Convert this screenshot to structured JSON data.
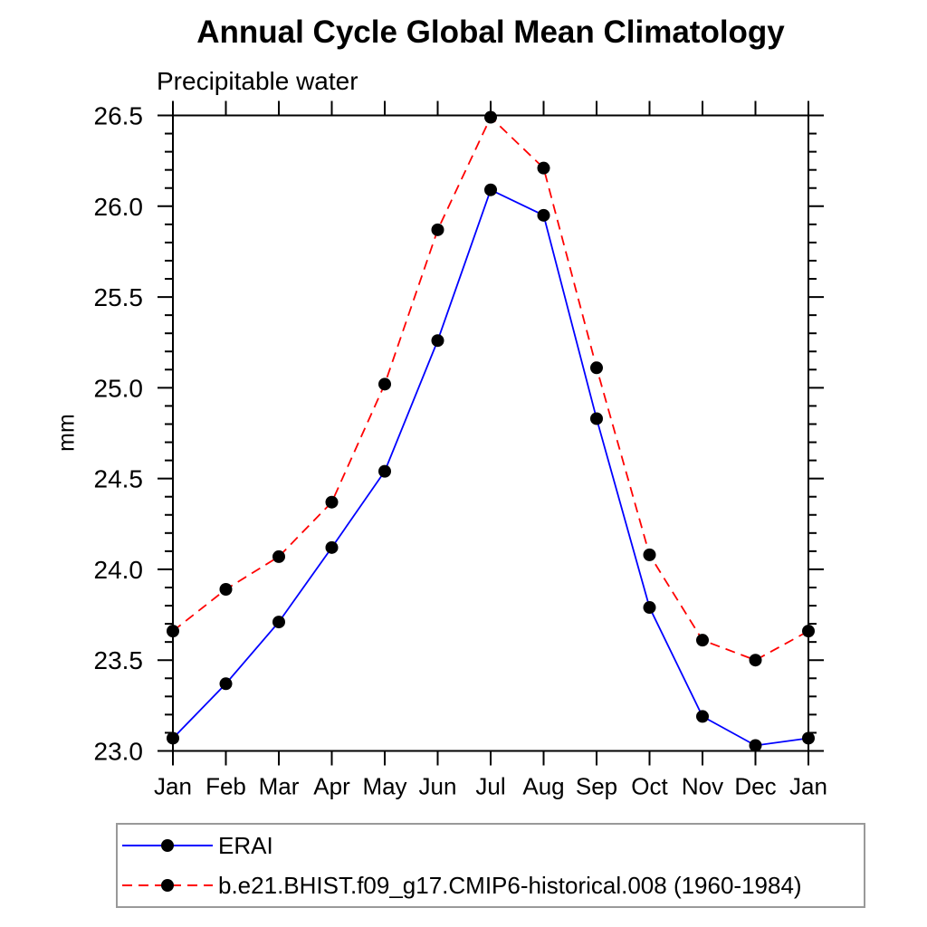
{
  "chart_data": {
    "type": "line",
    "title": "Annual Cycle Global Mean Climatology",
    "subtitle": "Precipitable water",
    "ylabel": "mm",
    "xlabel": "",
    "x_categories": [
      "Jan",
      "Feb",
      "Mar",
      "Apr",
      "May",
      "Jun",
      "Jul",
      "Aug",
      "Sep",
      "Oct",
      "Nov",
      "Dec",
      "Jan"
    ],
    "ylim": [
      23.0,
      26.5
    ],
    "y_major_ticks": [
      23.0,
      23.5,
      24.0,
      24.5,
      25.0,
      25.5,
      26.0,
      26.5
    ],
    "y_minor_step": 0.1,
    "grid": false,
    "legend_position": "bottom",
    "axis_color": "#000000",
    "marker": "filled-circle",
    "marker_color": "#000000",
    "series": [
      {
        "name": "ERAI",
        "color": "#0000ff",
        "style": "solid",
        "values": [
          23.07,
          23.37,
          23.71,
          24.12,
          24.54,
          25.26,
          26.09,
          25.95,
          24.83,
          23.79,
          23.19,
          23.03,
          23.07
        ]
      },
      {
        "name": "b.e21.BHIST.f09_g17.CMIP6-historical.008 (1960-1984)",
        "color": "#ff0000",
        "style": "dashed",
        "values": [
          23.66,
          23.89,
          24.07,
          24.37,
          25.02,
          25.87,
          26.49,
          26.21,
          25.11,
          24.08,
          23.61,
          23.5,
          23.66
        ]
      }
    ]
  }
}
